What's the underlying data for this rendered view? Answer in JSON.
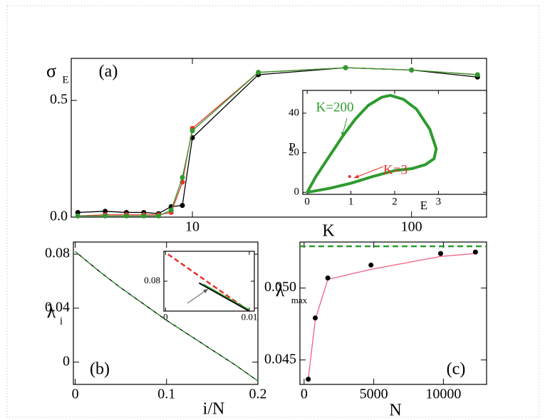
{
  "chart_data": [
    {
      "type": "line",
      "panel_label": "(a)",
      "xlabel": "K",
      "ylabel": "σ",
      "ylabel_sub": "E",
      "xscale": "log",
      "xlim": [
        2.8,
        220
      ],
      "xticks": [
        10,
        100
      ],
      "ylim": [
        0,
        0.68
      ],
      "yticks": [
        {
          "value": 0,
          "label": "0.0"
        },
        0.5
      ],
      "x": [
        3,
        4,
        5,
        6,
        7,
        8,
        9,
        10,
        20,
        50,
        100,
        200
      ],
      "series": [
        {
          "color": "#000000",
          "marker": true,
          "values": [
            0.02,
            0.025,
            0.02,
            0.02,
            0.015,
            0.045,
            0.05,
            0.34,
            0.61,
            0.64,
            0.63,
            0.6
          ]
        },
        {
          "color": "#e8312a",
          "marker": true,
          "values": [
            0.005,
            0.01,
            0.01,
            0.01,
            0.01,
            0.02,
            0.15,
            0.38,
            0.62,
            0.64,
            0.63,
            0.61
          ]
        },
        {
          "color": "#2e9b2e",
          "marker": true,
          "values": [
            0.005,
            0.005,
            0.005,
            0.005,
            0.005,
            0.03,
            0.17,
            0.37,
            0.62,
            0.64,
            0.63,
            0.61
          ]
        }
      ]
    },
    {
      "type": "line",
      "xlabel": "E",
      "ylabel": "P",
      "xlim": [
        -0.1,
        4.1
      ],
      "xticks": [
        0,
        1,
        2,
        3
      ],
      "ylim": [
        -1,
        51.5
      ],
      "yticks": [
        0,
        20,
        40
      ],
      "series": [
        {
          "color": "#2e9b2e",
          "width": 4,
          "x": [
            0,
            0.2,
            0.5,
            0.8,
            1.1,
            1.4,
            1.7,
            1.9,
            2.2,
            2.5,
            2.8,
            2.95,
            2.9,
            2.7,
            2.4,
            2.0,
            1.5,
            1.0,
            0.5,
            0
          ],
          "values": [
            0,
            8,
            18,
            28,
            37,
            44,
            48,
            49,
            47,
            42,
            32,
            22,
            17,
            14,
            12,
            11,
            8,
            4.6,
            2,
            0
          ]
        },
        {
          "color": "#e8312a",
          "marker": true,
          "x": [
            0.97
          ],
          "values": [
            8
          ]
        }
      ],
      "annotations": [
        {
          "text": "K=200",
          "color": "#2e9b2e"
        },
        {
          "text": "K=3",
          "color": "#e8312a"
        }
      ]
    },
    {
      "type": "line",
      "panel_label": "(b)",
      "xlabel": "i/N",
      "ylabel": "λ",
      "ylabel_sub": "i",
      "xlim": [
        -0.002,
        0.2
      ],
      "xticks": [
        0,
        0.1,
        0.2
      ],
      "ylim": [
        -0.0165,
        0.089
      ],
      "yticks": [
        0,
        0.04,
        0.08
      ],
      "x": [
        0,
        0.025,
        0.05,
        0.075,
        0.1,
        0.125,
        0.15,
        0.175,
        0.2
      ],
      "series": [
        {
          "color": "#000000",
          "values": [
            0.082,
            0.068,
            0.055,
            0.043,
            0.031,
            0.02,
            0.009,
            -0.002,
            -0.014
          ]
        },
        {
          "color": "#2e9b2e",
          "dash": true,
          "values": [
            0.082,
            0.068,
            0.055,
            0.043,
            0.031,
            0.02,
            0.009,
            -0.002,
            -0.014
          ]
        }
      ]
    },
    {
      "type": "line",
      "xlim": [
        -0.0002,
        0.0106
      ],
      "xticks": [
        0,
        0.01
      ],
      "ylim": [
        0.075,
        0.085
      ],
      "yticks": [
        0.08
      ],
      "series": [
        {
          "color": "#e8312a",
          "dash": true,
          "width": 2.5,
          "x": [
            0.0003,
            0.01
          ],
          "values": [
            0.0845,
            0.075
          ]
        },
        {
          "color": "#000000",
          "width": 2,
          "x": [
            0.004,
            0.01
          ],
          "values": [
            0.0797,
            0.075
          ]
        },
        {
          "color": "#2e9b2e",
          "width": 1.5,
          "x": [
            0.0045,
            0.01
          ],
          "values": [
            0.0795,
            0.0752
          ]
        }
      ]
    },
    {
      "type": "line",
      "panel_label": "(c)",
      "xlabel": "N",
      "ylabel": "λ",
      "ylabel_sub": "max",
      "xlim": [
        -300,
        13100
      ],
      "xticks": [
        0,
        5000,
        10000
      ],
      "ylim": [
        0.0433,
        0.0532
      ],
      "yticks": [
        0.045,
        {
          "value": 0.05,
          "label": "0.050"
        }
      ],
      "hline": {
        "value": 0.0529,
        "color": "#2e9b2e"
      },
      "series": [
        {
          "color": "#f06080",
          "x": [
            300,
            800,
            1700,
            4800,
            9800,
            12300
          ],
          "values": [
            0.0437,
            0.0478,
            0.0506,
            0.0513,
            0.0522,
            0.0524
          ]
        },
        {
          "color": "#000000",
          "marker": true,
          "line": false,
          "x": [
            300,
            800,
            1700,
            4800,
            9800,
            12300
          ],
          "values": [
            0.04366,
            0.04792,
            0.0507,
            0.0516,
            0.0524,
            0.0525
          ]
        }
      ]
    }
  ]
}
